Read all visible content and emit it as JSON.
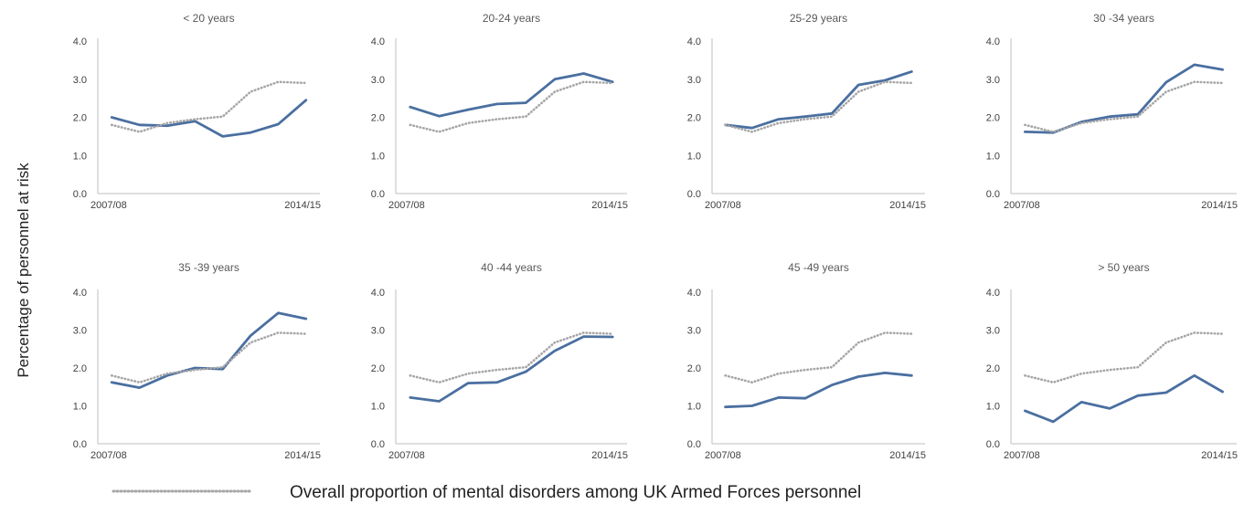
{
  "figure": {
    "ylabel": "Percentage of personnel at risk",
    "legend_label": "Overall proportion of mental disorders among UK Armed Forces personnel"
  },
  "chart_data": [
    {
      "type": "line",
      "title": "< 20 years",
      "x_tick_labels": [
        "2007/08",
        "2014/15"
      ],
      "ylim": [
        0,
        4
      ],
      "y_ticks": [
        "0.0",
        "1.0",
        "2.0",
        "3.0",
        "4.0"
      ],
      "series": [
        {
          "values": [
            2.0,
            1.8,
            1.78,
            1.9,
            1.5,
            1.6,
            1.82,
            2.45
          ],
          "color": "#4a6fa0",
          "style": "solid"
        },
        {
          "name": "Overall proportion of mental disorders among UK Armed Forces personnel",
          "values": [
            1.8,
            1.62,
            1.85,
            1.95,
            2.02,
            2.67,
            2.93,
            2.9
          ],
          "color": "#a6a6a6",
          "style": "dotted"
        }
      ]
    },
    {
      "type": "line",
      "title": "20-24 years",
      "x_tick_labels": [
        "2007/08",
        "2014/15"
      ],
      "ylim": [
        0,
        4
      ],
      "y_ticks": [
        "0.0",
        "1.0",
        "2.0",
        "3.0",
        "4.0"
      ],
      "series": [
        {
          "values": [
            2.27,
            2.03,
            2.2,
            2.35,
            2.38,
            3.0,
            3.15,
            2.93
          ],
          "color": "#4a6fa0",
          "style": "solid"
        },
        {
          "name": "Overall proportion of mental disorders among UK Armed Forces personnel",
          "values": [
            1.8,
            1.62,
            1.85,
            1.95,
            2.02,
            2.67,
            2.93,
            2.9
          ],
          "color": "#a6a6a6",
          "style": "dotted"
        }
      ]
    },
    {
      "type": "line",
      "title": "25-29 years",
      "x_tick_labels": [
        "2007/08",
        "2014/15"
      ],
      "ylim": [
        0,
        4
      ],
      "y_ticks": [
        "0.0",
        "1.0",
        "2.0",
        "3.0",
        "4.0"
      ],
      "series": [
        {
          "values": [
            1.8,
            1.72,
            1.95,
            2.02,
            2.1,
            2.85,
            2.97,
            3.2
          ],
          "color": "#4a6fa0",
          "style": "solid"
        },
        {
          "name": "Overall proportion of mental disorders among UK Armed Forces personnel",
          "values": [
            1.8,
            1.62,
            1.85,
            1.95,
            2.02,
            2.67,
            2.93,
            2.9
          ],
          "color": "#a6a6a6",
          "style": "dotted"
        }
      ]
    },
    {
      "type": "line",
      "title": "30 -34 years",
      "x_tick_labels": [
        "2007/08",
        "2014/15"
      ],
      "ylim": [
        0,
        4
      ],
      "y_ticks": [
        "0.0",
        "1.0",
        "2.0",
        "3.0",
        "4.0"
      ],
      "series": [
        {
          "values": [
            1.62,
            1.6,
            1.88,
            2.02,
            2.08,
            2.92,
            3.38,
            3.25
          ],
          "color": "#4a6fa0",
          "style": "solid"
        },
        {
          "name": "Overall proportion of mental disorders among UK Armed Forces personnel",
          "values": [
            1.8,
            1.62,
            1.85,
            1.95,
            2.02,
            2.67,
            2.93,
            2.9
          ],
          "color": "#a6a6a6",
          "style": "dotted"
        }
      ]
    },
    {
      "type": "line",
      "title": "35 -39 years",
      "x_tick_labels": [
        "2007/08",
        "2014/15"
      ],
      "ylim": [
        0,
        4
      ],
      "y_ticks": [
        "0.0",
        "1.0",
        "2.0",
        "3.0",
        "4.0"
      ],
      "series": [
        {
          "values": [
            1.62,
            1.48,
            1.8,
            2.0,
            1.97,
            2.85,
            3.45,
            3.3
          ],
          "color": "#4a6fa0",
          "style": "solid"
        },
        {
          "name": "Overall proportion of mental disorders among UK Armed Forces personnel",
          "values": [
            1.8,
            1.62,
            1.85,
            1.95,
            2.02,
            2.67,
            2.93,
            2.9
          ],
          "color": "#a6a6a6",
          "style": "dotted"
        }
      ]
    },
    {
      "type": "line",
      "title": "40 -44 years",
      "x_tick_labels": [
        "2007/08",
        "2014/15"
      ],
      "ylim": [
        0,
        4
      ],
      "y_ticks": [
        "0.0",
        "1.0",
        "2.0",
        "3.0",
        "4.0"
      ],
      "series": [
        {
          "values": [
            1.22,
            1.12,
            1.6,
            1.62,
            1.9,
            2.45,
            2.83,
            2.82
          ],
          "color": "#4a6fa0",
          "style": "solid"
        },
        {
          "name": "Overall proportion of mental disorders among UK Armed Forces personnel",
          "values": [
            1.8,
            1.62,
            1.85,
            1.95,
            2.02,
            2.67,
            2.93,
            2.9
          ],
          "color": "#a6a6a6",
          "style": "dotted"
        }
      ]
    },
    {
      "type": "line",
      "title": "45 -49 years",
      "x_tick_labels": [
        "2007/08",
        "2014/15"
      ],
      "ylim": [
        0,
        4
      ],
      "y_ticks": [
        "0.0",
        "1.0",
        "2.0",
        "3.0",
        "4.0"
      ],
      "series": [
        {
          "values": [
            0.97,
            1.0,
            1.22,
            1.2,
            1.55,
            1.77,
            1.87,
            1.8
          ],
          "color": "#4a6fa0",
          "style": "solid"
        },
        {
          "name": "Overall proportion of mental disorders among UK Armed Forces personnel",
          "values": [
            1.8,
            1.62,
            1.85,
            1.95,
            2.02,
            2.67,
            2.93,
            2.9
          ],
          "color": "#a6a6a6",
          "style": "dotted"
        }
      ]
    },
    {
      "type": "line",
      "title": "> 50 years",
      "x_tick_labels": [
        "2007/08",
        "2014/15"
      ],
      "ylim": [
        0,
        4
      ],
      "y_ticks": [
        "0.0",
        "1.0",
        "2.0",
        "3.0",
        "4.0"
      ],
      "series": [
        {
          "values": [
            0.87,
            0.58,
            1.1,
            0.93,
            1.27,
            1.35,
            1.8,
            1.37
          ],
          "color": "#4a6fa0",
          "style": "solid"
        },
        {
          "name": "Overall proportion of mental disorders among UK Armed Forces personnel",
          "values": [
            1.8,
            1.62,
            1.85,
            1.95,
            2.02,
            2.67,
            2.93,
            2.9
          ],
          "color": "#a6a6a6",
          "style": "dotted"
        }
      ]
    }
  ]
}
